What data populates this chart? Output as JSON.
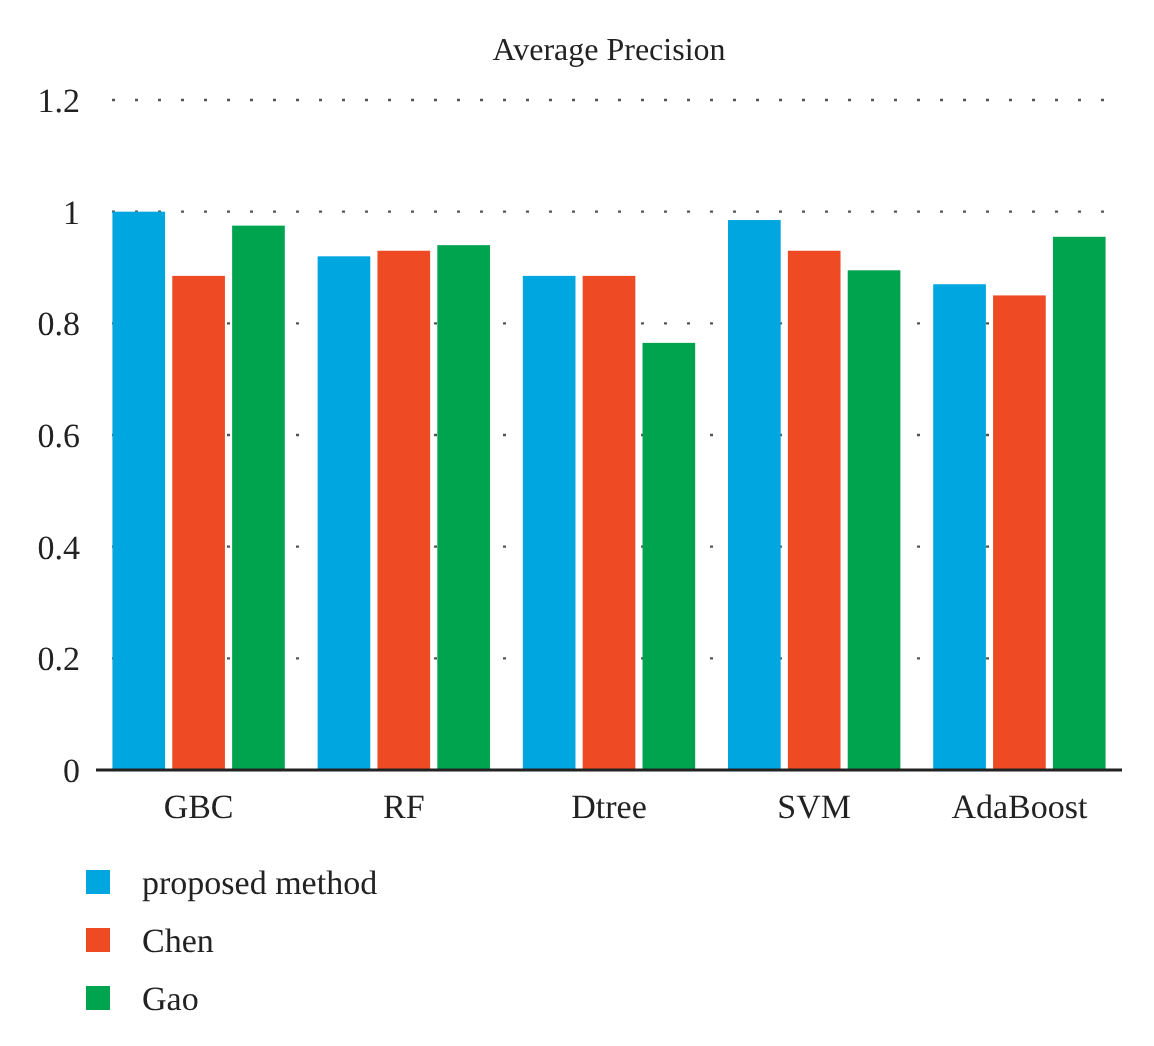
{
  "chart_data": {
    "type": "bar",
    "title": "Average Precision",
    "categories": [
      "GBC",
      "RF",
      "Dtree",
      "SVM",
      "AdaBoost"
    ],
    "series": [
      {
        "name": "proposed method",
        "color": "#00a6e0",
        "values": [
          1.0,
          0.92,
          0.885,
          0.985,
          0.87
        ]
      },
      {
        "name": "Chen",
        "color": "#ee4b25",
        "values": [
          0.885,
          0.93,
          0.885,
          0.93,
          0.85
        ]
      },
      {
        "name": "Gao",
        "color": "#00a44f",
        "values": [
          0.975,
          0.94,
          0.765,
          0.895,
          0.955
        ]
      }
    ],
    "ylim": [
      0,
      1.2
    ],
    "yticks": [
      0,
      0.2,
      0.4,
      0.6,
      0.8,
      1,
      1.2
    ],
    "grid": "y",
    "legend": "bottom"
  }
}
